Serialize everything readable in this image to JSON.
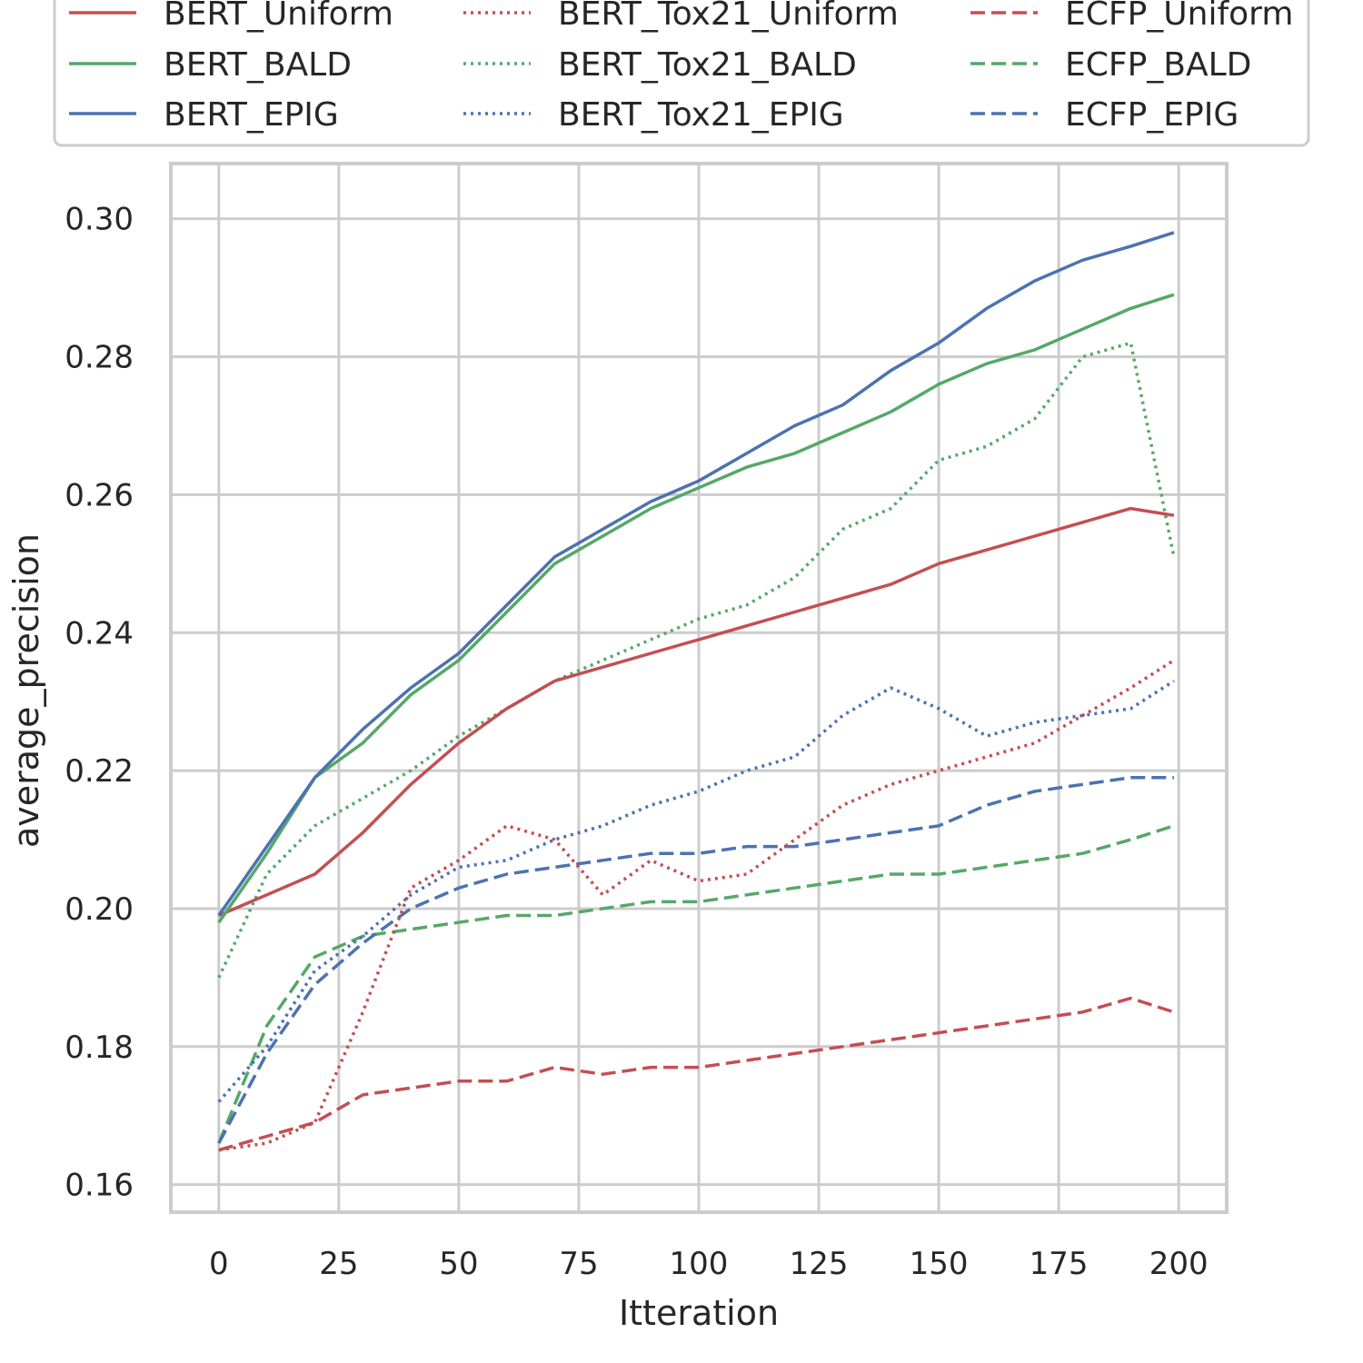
{
  "chart_data": {
    "type": "line",
    "title": "",
    "xlabel": "Itteration",
    "ylabel": "average_precision",
    "xlim": [
      -10,
      210
    ],
    "ylim": [
      0.156,
      0.308
    ],
    "x_ticks": [
      0,
      25,
      50,
      75,
      100,
      125,
      150,
      175,
      200
    ],
    "x_tick_labels": [
      "0",
      "25",
      "50",
      "75",
      "100",
      "125",
      "150",
      "175",
      "200"
    ],
    "y_ticks": [
      0.16,
      0.18,
      0.2,
      0.22,
      0.24,
      0.26,
      0.28,
      0.3
    ],
    "y_tick_labels": [
      "0.16",
      "0.18",
      "0.20",
      "0.22",
      "0.24",
      "0.26",
      "0.28",
      "0.30"
    ],
    "grid": true,
    "legend_position": "top",
    "colors": {
      "red": "#c44e52",
      "green": "#55a868",
      "blue": "#4c72b0",
      "grid": "#cccccc"
    },
    "series_x": [
      0,
      10,
      20,
      30,
      40,
      50,
      60,
      70,
      80,
      90,
      100,
      110,
      120,
      130,
      140,
      150,
      160,
      170,
      180,
      190,
      199
    ],
    "series": [
      {
        "name": "BERT_Uniform",
        "color": "red",
        "style": "solid",
        "values": [
          0.199,
          0.202,
          0.205,
          0.211,
          0.218,
          0.224,
          0.229,
          0.233,
          0.235,
          0.237,
          0.239,
          0.241,
          0.243,
          0.245,
          0.247,
          0.25,
          0.252,
          0.254,
          0.256,
          0.258,
          0.257
        ]
      },
      {
        "name": "BERT_BALD",
        "color": "green",
        "style": "solid",
        "values": [
          0.198,
          0.208,
          0.219,
          0.224,
          0.231,
          0.236,
          0.243,
          0.25,
          0.254,
          0.258,
          0.261,
          0.264,
          0.266,
          0.269,
          0.272,
          0.276,
          0.279,
          0.281,
          0.284,
          0.287,
          0.289
        ]
      },
      {
        "name": "BERT_EPIG",
        "color": "blue",
        "style": "solid",
        "values": [
          0.199,
          0.209,
          0.219,
          0.226,
          0.232,
          0.237,
          0.244,
          0.251,
          0.255,
          0.259,
          0.262,
          0.266,
          0.27,
          0.273,
          0.278,
          0.282,
          0.287,
          0.291,
          0.294,
          0.296,
          0.298
        ]
      },
      {
        "name": "BERT_Tox21_Uniform",
        "color": "red",
        "style": "dotted",
        "values": [
          0.165,
          0.166,
          0.169,
          0.185,
          0.203,
          0.207,
          0.212,
          0.21,
          0.202,
          0.207,
          0.204,
          0.205,
          0.21,
          0.215,
          0.218,
          0.22,
          0.222,
          0.224,
          0.228,
          0.232,
          0.236
        ]
      },
      {
        "name": "BERT_Tox21_BALD",
        "color": "green",
        "style": "dotted",
        "values": [
          0.19,
          0.205,
          0.212,
          0.216,
          0.22,
          0.225,
          0.229,
          0.233,
          0.236,
          0.239,
          0.242,
          0.244,
          0.248,
          0.255,
          0.258,
          0.265,
          0.267,
          0.271,
          0.28,
          0.282,
          0.251
        ]
      },
      {
        "name": "BERT_Tox21_EPIG",
        "color": "blue",
        "style": "dotted",
        "values": [
          0.172,
          0.18,
          0.191,
          0.196,
          0.202,
          0.206,
          0.207,
          0.21,
          0.212,
          0.215,
          0.217,
          0.22,
          0.222,
          0.228,
          0.232,
          0.229,
          0.225,
          0.227,
          0.228,
          0.229,
          0.233
        ]
      },
      {
        "name": "ECFP_Uniform",
        "color": "red",
        "style": "dashed",
        "values": [
          0.165,
          0.167,
          0.169,
          0.173,
          0.174,
          0.175,
          0.175,
          0.177,
          0.176,
          0.177,
          0.177,
          0.178,
          0.179,
          0.18,
          0.181,
          0.182,
          0.183,
          0.184,
          0.185,
          0.187,
          0.185
        ]
      },
      {
        "name": "ECFP_BALD",
        "color": "green",
        "style": "dashed",
        "values": [
          0.166,
          0.183,
          0.193,
          0.196,
          0.197,
          0.198,
          0.199,
          0.199,
          0.2,
          0.201,
          0.201,
          0.202,
          0.203,
          0.204,
          0.205,
          0.205,
          0.206,
          0.207,
          0.208,
          0.21,
          0.212
        ]
      },
      {
        "name": "ECFP_EPIG",
        "color": "blue",
        "style": "dashed",
        "values": [
          0.166,
          0.179,
          0.189,
          0.195,
          0.2,
          0.203,
          0.205,
          0.206,
          0.207,
          0.208,
          0.208,
          0.209,
          0.209,
          0.21,
          0.211,
          0.212,
          0.215,
          0.217,
          0.218,
          0.219,
          0.219
        ]
      }
    ]
  }
}
